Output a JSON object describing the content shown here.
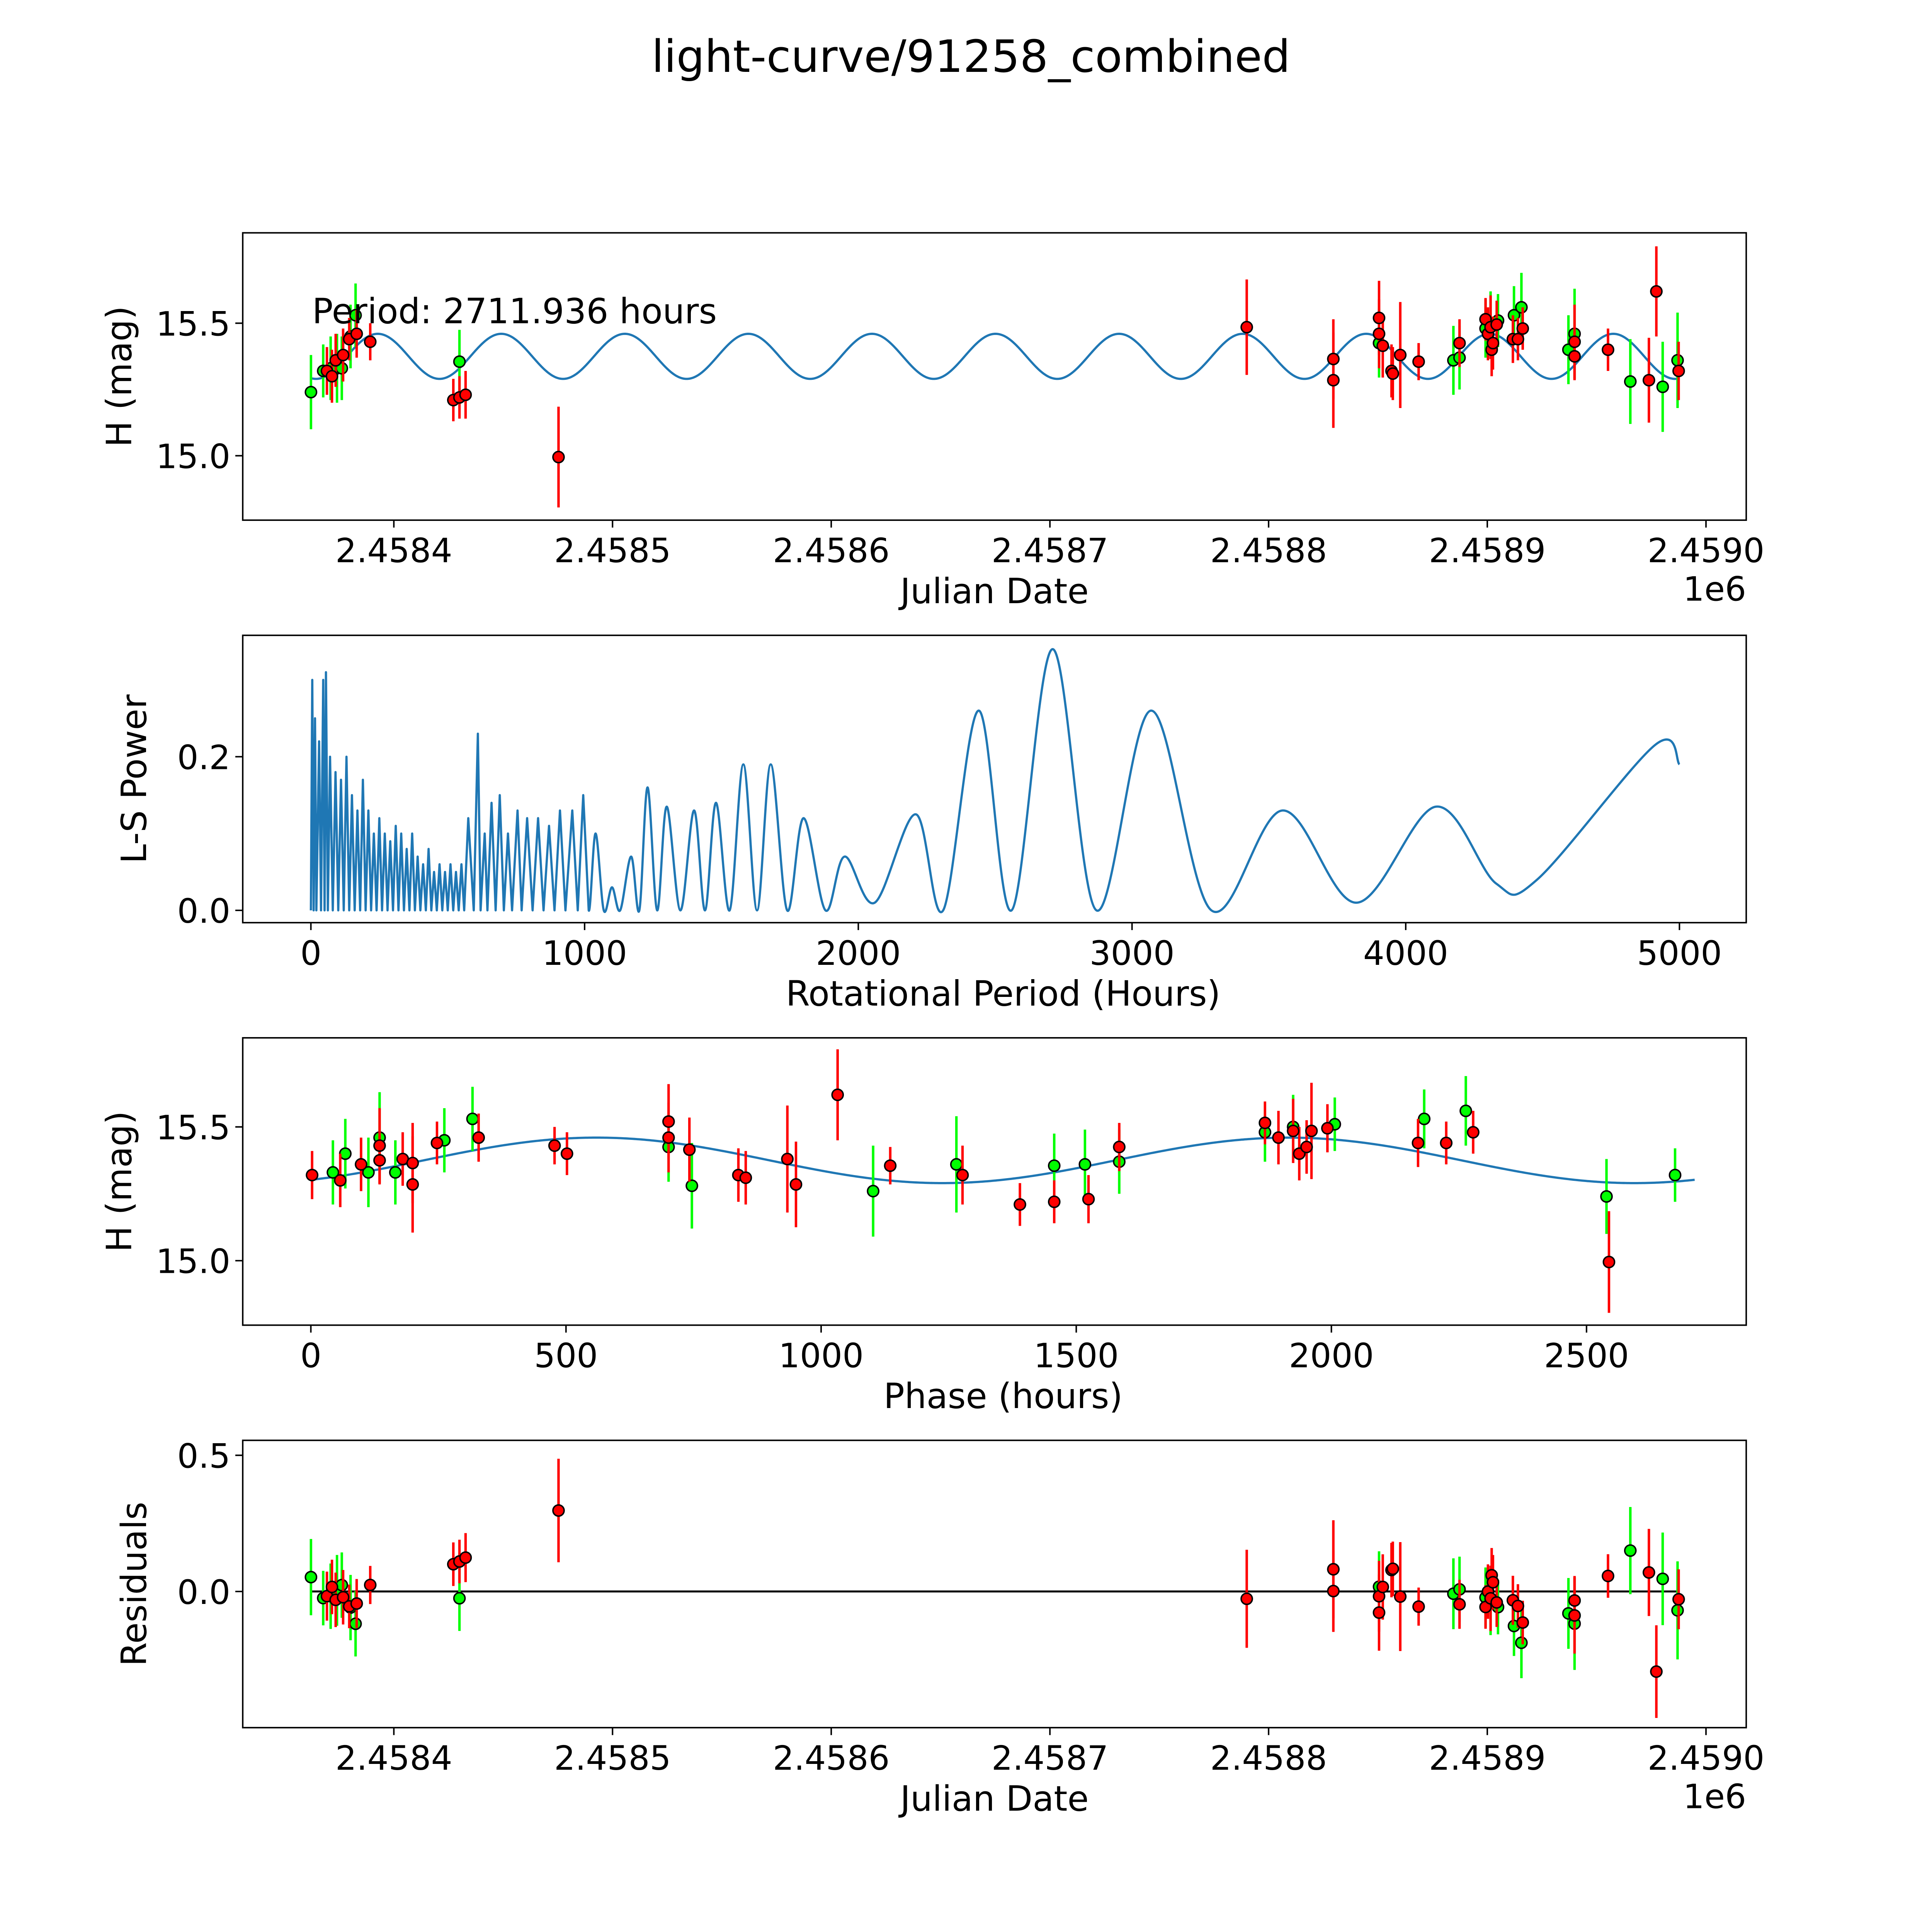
{
  "figure": {
    "title": "light-curve/91258_combined"
  },
  "colors": {
    "filter_a": "#00ff00",
    "filter_b": "#ff0000",
    "model": "#1f77b4",
    "marker_edge": "#000000",
    "zero_line": "#000000"
  },
  "model": {
    "type": "sine",
    "period_hours": 2711.936,
    "cycles_per_period": 2,
    "mean_mag": 15.375,
    "amplitude_mag": 0.085,
    "peak_phase_hours": 560,
    "epoch_jd": 2458369.3
  },
  "chart_data": [
    {
      "type": "scatter",
      "panel": "light-curve",
      "xlabel": "Julian Date",
      "ylabel": "H (mag)",
      "offset_text": "1e6",
      "annotation": "Period: 2711.936 hours",
      "xlim": [
        2458330.9,
        2459018.4
      ],
      "ylim": [
        14.757,
        15.841
      ],
      "xticks": [
        2458400,
        2458500,
        2458600,
        2458700,
        2458800,
        2458900,
        2459000
      ],
      "xtick_labels": [
        "2.4584",
        "2.4585",
        "2.4586",
        "2.4587",
        "2.4588",
        "2.4589",
        "2.4590"
      ],
      "yticks": [
        15.0,
        15.5
      ],
      "ytick_labels": [
        "15.0",
        "15.5"
      ],
      "series": [
        {
          "name": "green",
          "color": "#00ff00",
          "points": [
            [
              2458362.1,
              15.24,
              0.14
            ],
            [
              2458367.7,
              15.32,
              0.1
            ],
            [
              2458371.1,
              15.33,
              0.12
            ],
            [
              2458374.0,
              15.33,
              0.13
            ],
            [
              2458376.2,
              15.33,
              0.12
            ],
            [
              2458380.2,
              15.45,
              0.12
            ],
            [
              2458382.5,
              15.53,
              0.12
            ],
            [
              2458430.0,
              15.355,
              0.12
            ],
            [
              2458850.5,
              15.425,
              0.13
            ],
            [
              2458884.5,
              15.36,
              0.13
            ],
            [
              2458887.3,
              15.37,
              0.12
            ],
            [
              2458899.2,
              15.48,
              0.11
            ],
            [
              2458901.5,
              15.5,
              0.12
            ],
            [
              2458904.9,
              15.51,
              0.1
            ],
            [
              2458912.2,
              15.53,
              0.11
            ],
            [
              2458915.6,
              15.56,
              0.13
            ],
            [
              2458937.1,
              15.4,
              0.13
            ],
            [
              2458939.9,
              15.46,
              0.17
            ],
            [
              2458965.4,
              15.28,
              0.16
            ],
            [
              2458980.2,
              15.26,
              0.17
            ],
            [
              2458987.0,
              15.36,
              0.18
            ]
          ]
        },
        {
          "name": "red",
          "color": "#ff0000",
          "points": [
            [
              2458369.4,
              15.32,
              0.09
            ],
            [
              2458371.7,
              15.3,
              0.1
            ],
            [
              2458373.4,
              15.36,
              0.1
            ],
            [
              2458376.8,
              15.38,
              0.1
            ],
            [
              2458379.6,
              15.44,
              0.08
            ],
            [
              2458383.0,
              15.46,
              0.09
            ],
            [
              2458389.2,
              15.43,
              0.07
            ],
            [
              2458427.2,
              15.21,
              0.08
            ],
            [
              2458430.0,
              15.22,
              0.08
            ],
            [
              2458432.8,
              15.23,
              0.09
            ],
            [
              2458475.3,
              14.995,
              0.19
            ],
            [
              2458790.0,
              15.485,
              0.18
            ],
            [
              2458829.6,
              15.365,
              0.15
            ],
            [
              2458829.6,
              15.285,
              0.18
            ],
            [
              2458850.5,
              15.52,
              0.14
            ],
            [
              2458850.5,
              15.46,
              0.13
            ],
            [
              2458852.2,
              15.415,
              0.12
            ],
            [
              2458856.2,
              15.32,
              0.1
            ],
            [
              2458856.8,
              15.31,
              0.1
            ],
            [
              2458860.2,
              15.38,
              0.2
            ],
            [
              2458868.6,
              15.355,
              0.07
            ],
            [
              2458887.3,
              15.425,
              0.09
            ],
            [
              2458899.2,
              15.515,
              0.08
            ],
            [
              2458900.3,
              15.46,
              0.1
            ],
            [
              2458901.5,
              15.485,
              0.12
            ],
            [
              2458902.0,
              15.4,
              0.1
            ],
            [
              2458902.6,
              15.425,
              0.1
            ],
            [
              2458904.3,
              15.495,
              0.09
            ],
            [
              2458911.7,
              15.44,
              0.09
            ],
            [
              2458914.0,
              15.44,
              0.08
            ],
            [
              2458916.2,
              15.48,
              0.08
            ],
            [
              2458939.9,
              15.43,
              0.14
            ],
            [
              2458939.9,
              15.375,
              0.09
            ],
            [
              2458955.2,
              15.4,
              0.08
            ],
            [
              2458973.9,
              15.285,
              0.16
            ],
            [
              2458977.3,
              15.62,
              0.17
            ],
            [
              2458987.5,
              15.32,
              0.11
            ]
          ]
        }
      ]
    },
    {
      "type": "line",
      "panel": "periodogram",
      "xlabel": "Rotational Period (Hours)",
      "ylabel": "L-S Power",
      "xlim": [
        -249,
        5244
      ],
      "ylim": [
        -0.016,
        0.358
      ],
      "xticks": [
        0,
        1000,
        2000,
        3000,
        4000,
        5000
      ],
      "xtick_labels": [
        "0",
        "1000",
        "2000",
        "3000",
        "4000",
        "5000"
      ],
      "yticks": [
        0.0,
        0.2
      ],
      "ytick_labels": [
        "0.0",
        "0.2"
      ],
      "series": [
        {
          "name": "power",
          "points": [
            [
              0,
              0
            ],
            [
              5,
              0.3
            ],
            [
              10,
              0
            ],
            [
              15,
              0.25
            ],
            [
              20,
              0
            ],
            [
              30,
              0.22
            ],
            [
              37,
              0
            ],
            [
              45,
              0.3
            ],
            [
              50,
              0
            ],
            [
              55,
              0.31
            ],
            [
              62,
              0
            ],
            [
              70,
              0.2
            ],
            [
              80,
              0
            ],
            [
              90,
              0.18
            ],
            [
              100,
              0
            ],
            [
              110,
              0.17
            ],
            [
              120,
              0
            ],
            [
              130,
              0.2
            ],
            [
              140,
              0
            ],
            [
              150,
              0.15
            ],
            [
              160,
              0
            ],
            [
              170,
              0.13
            ],
            [
              180,
              0
            ],
            [
              190,
              0.17
            ],
            [
              200,
              0
            ],
            [
              210,
              0.13
            ],
            [
              220,
              0
            ],
            [
              230,
              0.1
            ],
            [
              240,
              0
            ],
            [
              250,
              0.12
            ],
            [
              260,
              0
            ],
            [
              270,
              0.1
            ],
            [
              280,
              0
            ],
            [
              290,
              0.09
            ],
            [
              300,
              0
            ],
            [
              310,
              0.11
            ],
            [
              320,
              0
            ],
            [
              330,
              0.1
            ],
            [
              340,
              0
            ],
            [
              350,
              0.08
            ],
            [
              360,
              0
            ],
            [
              370,
              0.1
            ],
            [
              380,
              0
            ],
            [
              390,
              0.07
            ],
            [
              400,
              0
            ],
            [
              410,
              0.06
            ],
            [
              420,
              0
            ],
            [
              430,
              0.08
            ],
            [
              440,
              0
            ],
            [
              450,
              0.05
            ],
            [
              460,
              0
            ],
            [
              470,
              0.06
            ],
            [
              480,
              0
            ],
            [
              490,
              0.05
            ],
            [
              500,
              0
            ],
            [
              510,
              0.06
            ],
            [
              520,
              0
            ],
            [
              530,
              0.05
            ],
            [
              540,
              0
            ],
            [
              550,
              0.06
            ],
            [
              560,
              0
            ],
            [
              575,
              0.12
            ],
            [
              595,
              0
            ],
            [
              610,
              0.23
            ],
            [
              620,
              0
            ],
            [
              635,
              0.1
            ],
            [
              645,
              0
            ],
            [
              660,
              0.14
            ],
            [
              675,
              0
            ],
            [
              690,
              0.15
            ],
            [
              705,
              0
            ],
            [
              720,
              0.1
            ],
            [
              735,
              0
            ],
            [
              755,
              0.13
            ],
            [
              770,
              0
            ],
            [
              790,
              0.12
            ],
            [
              810,
              0
            ],
            [
              830,
              0.12
            ],
            [
              850,
              0
            ],
            [
              870,
              0.11
            ],
            [
              890,
              0
            ],
            [
              910,
              0.13
            ],
            [
              930,
              0
            ],
            [
              955,
              0.13
            ],
            [
              975,
              0
            ],
            [
              995,
              0.15
            ],
            [
              1015,
              0
            ],
            [
              1040,
              0.1
            ],
            [
              1070,
              0.0
            ],
            [
              1100,
              0.03
            ],
            [
              1130,
              0
            ],
            [
              1170,
              0.07
            ],
            [
              1200,
              0
            ],
            [
              1230,
              0.16
            ],
            [
              1265,
              0
            ],
            [
              1300,
              0.135
            ],
            [
              1350,
              0
            ],
            [
              1400,
              0.13
            ],
            [
              1440,
              0
            ],
            [
              1480,
              0.14
            ],
            [
              1530,
              0
            ],
            [
              1580,
              0.19
            ],
            [
              1630,
              0
            ],
            [
              1680,
              0.19
            ],
            [
              1740,
              0
            ],
            [
              1800,
              0.12
            ],
            [
              1880,
              0
            ],
            [
              1950,
              0.07
            ],
            [
              2060,
              0.01
            ],
            [
              2210,
              0.125
            ],
            [
              2310,
              0
            ],
            [
              2440,
              0.26
            ],
            [
              2560,
              0
            ],
            [
              2710,
              0.34
            ],
            [
              2870,
              0
            ],
            [
              3070,
              0.26
            ],
            [
              3290,
              0
            ],
            [
              3550,
              0.13
            ],
            [
              3820,
              0.01
            ],
            [
              4110,
              0.135
            ],
            [
              4330,
              0.035
            ],
            [
              4480,
              0.04
            ],
            [
              4910,
              0.215
            ],
            [
              5000,
              0.19
            ]
          ]
        }
      ]
    },
    {
      "type": "scatter",
      "panel": "phase-folded",
      "derived_from": "light-curve",
      "xlabel": "Phase (hours)",
      "ylabel": "H (mag)",
      "xlim": [
        -133.5,
        2813
      ],
      "ylim": [
        14.759,
        15.833
      ],
      "xticks": [
        0,
        500,
        1000,
        1500,
        2000,
        2500
      ],
      "xtick_labels": [
        "0",
        "500",
        "1000",
        "1500",
        "2000",
        "2500"
      ],
      "yticks": [
        15.0,
        15.5
      ],
      "ytick_labels": [
        "15.0",
        "15.5"
      ]
    },
    {
      "type": "scatter",
      "panel": "residuals",
      "derived_from": "light-curve",
      "xlabel": "Julian Date",
      "ylabel": "Residuals",
      "offset_text": "1e6",
      "xlim": [
        2458330.9,
        2459018.4
      ],
      "ylim": [
        -0.5,
        0.555
      ],
      "xticks": [
        2458400,
        2458500,
        2458600,
        2458700,
        2458800,
        2458900,
        2459000
      ],
      "xtick_labels": [
        "2.4584",
        "2.4585",
        "2.4586",
        "2.4587",
        "2.4588",
        "2.4589",
        "2.4590"
      ],
      "yticks": [
        0.0,
        0.5
      ],
      "ytick_labels": [
        "0.0",
        "0.5"
      ]
    }
  ]
}
